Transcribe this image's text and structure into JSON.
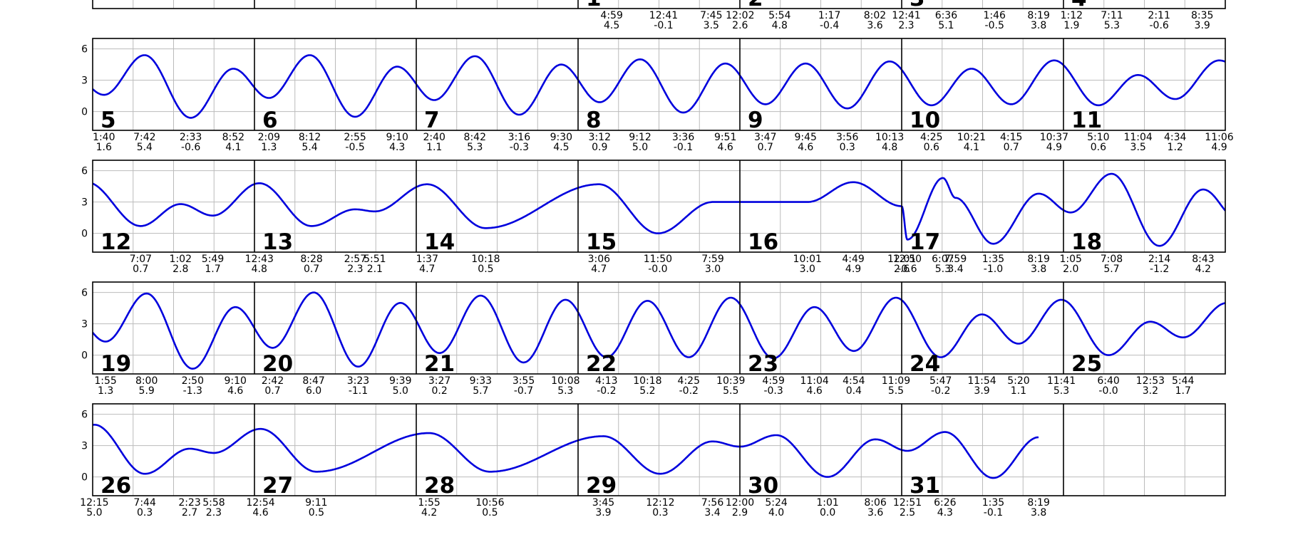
{
  "chart_data": {
    "type": "line",
    "title": "",
    "xlabel": "",
    "ylabel": "",
    "ylim": [
      -1.8,
      7.0
    ],
    "y_ticks": [
      0,
      3,
      6
    ],
    "grid": true,
    "colors": {
      "curve": "#0000dd",
      "grid": "#bbbbbb",
      "axis": "#000000"
    },
    "rows": [
      {
        "days": [
          null,
          null,
          null,
          "1",
          "2",
          "3",
          "4"
        ]
      },
      {
        "days": [
          "5",
          "6",
          "7",
          "8",
          "9",
          "10",
          "11"
        ]
      },
      {
        "days": [
          "12",
          "13",
          "14",
          "15",
          "16",
          "17",
          "18"
        ]
      },
      {
        "days": [
          "19",
          "20",
          "21",
          "22",
          "23",
          "24",
          "25"
        ]
      },
      {
        "days": [
          "26",
          "27",
          "28",
          "29",
          "30",
          "31",
          null
        ]
      }
    ],
    "days": [
      {
        "day": "1",
        "extremes": [
          {
            "time": "4:59",
            "height": "4.5"
          },
          {
            "time": "12:41",
            "height": "-0.1"
          },
          {
            "time": "7:45",
            "height": "3.5"
          }
        ]
      },
      {
        "day": "2",
        "extremes": [
          {
            "time": "12:02",
            "height": "2.6"
          },
          {
            "time": "5:54",
            "height": "4.8"
          },
          {
            "time": "1:17",
            "height": "-0.4"
          },
          {
            "time": "8:02",
            "height": "3.6"
          }
        ]
      },
      {
        "day": "3",
        "extremes": [
          {
            "time": "12:41",
            "height": "2.3"
          },
          {
            "time": "6:36",
            "height": "5.1"
          },
          {
            "time": "1:46",
            "height": "-0.5"
          },
          {
            "time": "8:19",
            "height": "3.8"
          }
        ]
      },
      {
        "day": "4",
        "extremes": [
          {
            "time": "1:12",
            "height": "1.9"
          },
          {
            "time": "7:11",
            "height": "5.3"
          },
          {
            "time": "2:11",
            "height": "-0.6"
          },
          {
            "time": "8:35",
            "height": "3.9"
          }
        ]
      },
      {
        "day": "5",
        "extremes": [
          {
            "time": "1:40",
            "height": "1.6"
          },
          {
            "time": "7:42",
            "height": "5.4"
          },
          {
            "time": "2:33",
            "height": "-0.6"
          },
          {
            "time": "8:52",
            "height": "4.1"
          }
        ]
      },
      {
        "day": "6",
        "extremes": [
          {
            "time": "2:09",
            "height": "1.3"
          },
          {
            "time": "8:12",
            "height": "5.4"
          },
          {
            "time": "2:55",
            "height": "-0.5"
          },
          {
            "time": "9:10",
            "height": "4.3"
          }
        ]
      },
      {
        "day": "7",
        "extremes": [
          {
            "time": "2:40",
            "height": "1.1"
          },
          {
            "time": "8:42",
            "height": "5.3"
          },
          {
            "time": "3:16",
            "height": "-0.3"
          },
          {
            "time": "9:30",
            "height": "4.5"
          }
        ]
      },
      {
        "day": "8",
        "extremes": [
          {
            "time": "3:12",
            "height": "0.9"
          },
          {
            "time": "9:12",
            "height": "5.0"
          },
          {
            "time": "3:36",
            "height": "-0.1"
          },
          {
            "time": "9:51",
            "height": "4.6"
          }
        ]
      },
      {
        "day": "9",
        "extremes": [
          {
            "time": "3:47",
            "height": "0.7"
          },
          {
            "time": "9:45",
            "height": "4.6"
          },
          {
            "time": "3:56",
            "height": "0.3"
          },
          {
            "time": "10:13",
            "height": "4.8"
          }
        ]
      },
      {
        "day": "10",
        "extremes": [
          {
            "time": "4:25",
            "height": "0.6"
          },
          {
            "time": "10:21",
            "height": "4.1"
          },
          {
            "time": "4:15",
            "height": "0.7"
          },
          {
            "time": "10:37",
            "height": "4.9"
          }
        ]
      },
      {
        "day": "11",
        "extremes": [
          {
            "time": "5:10",
            "height": "0.6"
          },
          {
            "time": "11:04",
            "height": "3.5"
          },
          {
            "time": "4:34",
            "height": "1.2"
          },
          {
            "time": "11:06",
            "height": "4.9"
          }
        ]
      },
      {
        "day": "12",
        "extremes": [
          {
            "time": "7:07",
            "height": "0.7"
          },
          {
            "time": "1:02",
            "height": "2.8"
          },
          {
            "time": "5:49",
            "height": "1.7"
          }
        ]
      },
      {
        "day": "13",
        "extremes": [
          {
            "time": "12:43",
            "height": "4.8"
          },
          {
            "time": "8:28",
            "height": "0.7"
          },
          {
            "time": "2:57",
            "height": "2.3"
          },
          {
            "time": "5:51",
            "height": "2.1"
          }
        ]
      },
      {
        "day": "14",
        "extremes": [
          {
            "time": "1:37",
            "height": "4.7"
          },
          {
            "time": "10:18",
            "height": "0.5"
          }
        ]
      },
      {
        "day": "15",
        "extremes": [
          {
            "time": "3:06",
            "height": "4.7"
          },
          {
            "time": "11:50",
            "height": "-0.0"
          },
          {
            "time": "7:59",
            "height": "3.0"
          }
        ]
      },
      {
        "day": "16",
        "extremes": [
          {
            "time": "10:01",
            "height": "3.0"
          },
          {
            "time": "4:49",
            "height": "4.9"
          },
          {
            "time": "12:50",
            "height": "-0.6"
          },
          {
            "time": "7:59",
            "height": "3.4"
          }
        ]
      },
      {
        "day": "17",
        "extremes": [
          {
            "time": "12:01",
            "height": "2.6"
          },
          {
            "time": "6:07",
            "height": "5.3"
          },
          {
            "time": "1:35",
            "height": "-1.0"
          },
          {
            "time": "8:19",
            "height": "3.8"
          }
        ]
      },
      {
        "day": "18",
        "extremes": [
          {
            "time": "1:05",
            "height": "2.0"
          },
          {
            "time": "7:08",
            "height": "5.7"
          },
          {
            "time": "2:14",
            "height": "-1.2"
          },
          {
            "time": "8:43",
            "height": "4.2"
          }
        ]
      },
      {
        "day": "19",
        "extremes": [
          {
            "time": "1:55",
            "height": "1.3"
          },
          {
            "time": "8:00",
            "height": "5.9"
          },
          {
            "time": "2:50",
            "height": "-1.3"
          },
          {
            "time": "9:10",
            "height": "4.6"
          }
        ]
      },
      {
        "day": "20",
        "extremes": [
          {
            "time": "2:42",
            "height": "0.7"
          },
          {
            "time": "8:47",
            "height": "6.0"
          },
          {
            "time": "3:23",
            "height": "-1.1"
          },
          {
            "time": "9:39",
            "height": "5.0"
          }
        ]
      },
      {
        "day": "21",
        "extremes": [
          {
            "time": "3:27",
            "height": "0.2"
          },
          {
            "time": "9:33",
            "height": "5.7"
          },
          {
            "time": "3:55",
            "height": "-0.7"
          },
          {
            "time": "10:08",
            "height": "5.3"
          }
        ]
      },
      {
        "day": "22",
        "extremes": [
          {
            "time": "4:13",
            "height": "-0.2"
          },
          {
            "time": "10:18",
            "height": "5.2"
          },
          {
            "time": "4:25",
            "height": "-0.2"
          },
          {
            "time": "10:39",
            "height": "5.5"
          }
        ]
      },
      {
        "day": "23",
        "extremes": [
          {
            "time": "4:59",
            "height": "-0.3"
          },
          {
            "time": "11:04",
            "height": "4.6"
          },
          {
            "time": "4:54",
            "height": "0.4"
          },
          {
            "time": "11:09",
            "height": "5.5"
          }
        ]
      },
      {
        "day": "24",
        "extremes": [
          {
            "time": "5:47",
            "height": "-0.2"
          },
          {
            "time": "11:54",
            "height": "3.9"
          },
          {
            "time": "5:20",
            "height": "1.1"
          },
          {
            "time": "11:41",
            "height": "5.3"
          }
        ]
      },
      {
        "day": "25",
        "extremes": [
          {
            "time": "6:40",
            "height": "-0.0"
          },
          {
            "time": "12:53",
            "height": "3.2"
          },
          {
            "time": "5:44",
            "height": "1.7"
          }
        ]
      },
      {
        "day": "26",
        "extremes": [
          {
            "time": "12:15",
            "height": "5.0"
          },
          {
            "time": "7:44",
            "height": "0.3"
          },
          {
            "time": "2:23",
            "height": "2.7"
          },
          {
            "time": "5:58",
            "height": "2.3"
          }
        ]
      },
      {
        "day": "27",
        "extremes": [
          {
            "time": "12:54",
            "height": "4.6"
          },
          {
            "time": "9:11",
            "height": "0.5"
          }
        ]
      },
      {
        "day": "28",
        "extremes": [
          {
            "time": "1:55",
            "height": "4.2"
          },
          {
            "time": "10:56",
            "height": "0.5"
          }
        ]
      },
      {
        "day": "29",
        "extremes": [
          {
            "time": "3:45",
            "height": "3.9"
          },
          {
            "time": "12:12",
            "height": "0.3"
          },
          {
            "time": "7:56",
            "height": "3.4"
          }
        ]
      },
      {
        "day": "30",
        "extremes": [
          {
            "time": "12:00",
            "height": "2.9"
          },
          {
            "time": "5:24",
            "height": "4.0"
          },
          {
            "time": "1:01",
            "height": "0.0"
          },
          {
            "time": "8:06",
            "height": "3.6"
          }
        ]
      },
      {
        "day": "31",
        "extremes": [
          {
            "time": "12:51",
            "height": "2.5"
          },
          {
            "time": "6:26",
            "height": "4.3"
          },
          {
            "time": "1:35",
            "height": "-0.1"
          },
          {
            "time": "8:19",
            "height": "3.8"
          }
        ]
      }
    ]
  }
}
